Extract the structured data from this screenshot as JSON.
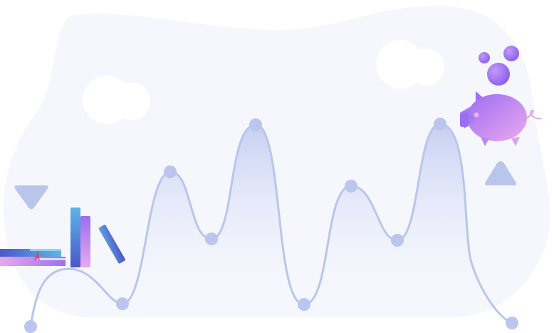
{
  "illustration": {
    "palette": {
      "blob": "#f6f7fd",
      "line": "#b9c6ec",
      "dot": "#bac6ed",
      "fill_top": "#c3cdf0",
      "purple": "#9b6ef3",
      "pink": "#e6a8f0",
      "blue": "#5aa2e3",
      "indigo": "#4a57c7"
    },
    "icons": [
      "cloud-icon",
      "book-stack-icon",
      "piggy-bank-icon",
      "coin-bubble-icon",
      "triangle-down-icon",
      "triangle-up-icon"
    ]
  }
}
